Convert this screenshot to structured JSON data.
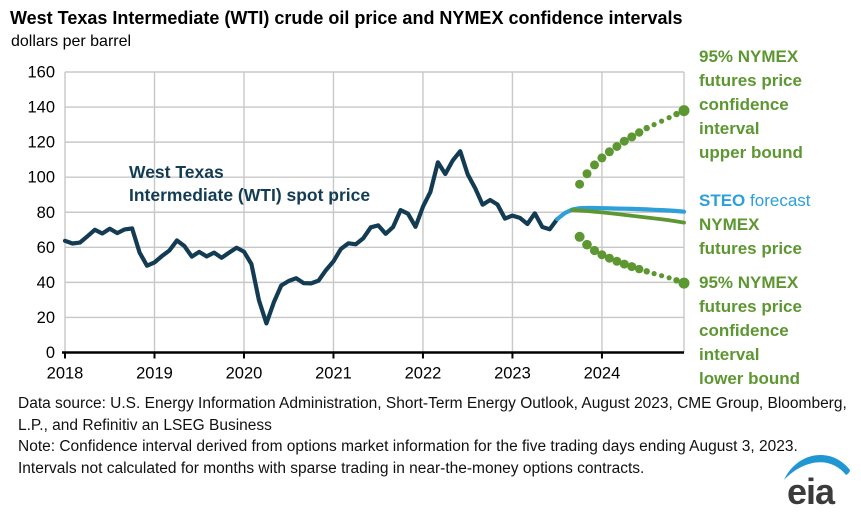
{
  "header": {
    "title": "West Texas Intermediate (WTI) crude oil price and NYMEX confidence intervals",
    "subtitle": "dollars per barrel"
  },
  "annotations": {
    "spot_label": {
      "lines": [
        "West Texas",
        "Intermediate (WTI) spot price"
      ]
    },
    "upper_bound": {
      "lines": [
        "95% NYMEX",
        "futures price",
        "confidence",
        "interval",
        "upper bound"
      ]
    },
    "steo": {
      "label": "STEO",
      "rest": " forecast"
    },
    "nymex_futures": {
      "lines": [
        "NYMEX",
        "futures price"
      ]
    },
    "lower_bound": {
      "lines": [
        "95% NYMEX",
        "futures price",
        "confidence",
        "interval",
        "lower bound"
      ]
    }
  },
  "footer": {
    "data_source": "Data source: U.S. Energy Information Administration, Short-Term Energy Outlook, August 2023, CME Group, Bloomberg, L.P., and Refinitiv an LSEG Business",
    "note": "Note: Confidence interval derived from options market information for the five trading days ending August 3, 2023. Intervals not calculated for months with sparse trading in near-the-money options contracts."
  },
  "logo": {
    "text": "eia"
  },
  "colors": {
    "spot": "#133c54",
    "steo": "#2d9fd9",
    "green": "#5d9732",
    "grid": "#c8c8c8",
    "axis": "#000000",
    "logo_swoosh": "#2096d3",
    "logo_text": "#3b3b3b"
  },
  "chart_data": {
    "type": "line",
    "title": "West Texas Intermediate (WTI) crude oil price and NYMEX confidence intervals",
    "ylabel": "dollars per barrel",
    "ylim": [
      0,
      160
    ],
    "ytick_interval": 20,
    "xlim": [
      2018,
      2024.917
    ],
    "xticks": [
      2018,
      2019,
      2020,
      2021,
      2022,
      2023,
      2024
    ],
    "grid": true,
    "legend_position": "right-annotations",
    "series": [
      {
        "name": "WTI spot price",
        "type": "line",
        "color": "#133c54",
        "width": 4.2,
        "start": "2018-01",
        "values": [
          63.7,
          62.2,
          62.7,
          66.3,
          70.0,
          67.9,
          70.6,
          68.1,
          70.2,
          70.8,
          57.0,
          49.5,
          51.4,
          55.0,
          58.2,
          63.9,
          60.8,
          54.7,
          57.4,
          54.8,
          57.0,
          54.0,
          57.0,
          59.8,
          57.5,
          50.5,
          29.9,
          16.6,
          28.6,
          38.3,
          40.8,
          42.4,
          39.6,
          39.4,
          41.0,
          47.0,
          52.0,
          59.1,
          62.3,
          61.7,
          65.2,
          71.4,
          72.5,
          67.7,
          71.6,
          81.2,
          79.2,
          71.7,
          83.2,
          91.6,
          108.5,
          101.8,
          109.6,
          114.8,
          101.6,
          93.7,
          84.3,
          87.0,
          84.4,
          76.4,
          78.1,
          76.8,
          73.3,
          79.4,
          71.6,
          70.3,
          76.1
        ]
      },
      {
        "name": "STEO forecast",
        "type": "line",
        "color": "#2d9fd9",
        "width": 4.2,
        "start": "2023-07",
        "values": [
          76.1,
          79.5,
          81.5,
          82.3,
          82.4,
          82.4,
          82.3,
          82.2,
          82.1,
          82.0,
          81.9,
          81.8,
          81.6,
          81.4,
          81.2,
          81.0,
          80.7,
          80.3
        ]
      },
      {
        "name": "NYMEX futures price",
        "type": "line",
        "color": "#5d9732",
        "width": 3.8,
        "start": "2023-09",
        "values": [
          81.3,
          81.0,
          80.7,
          80.3,
          79.9,
          79.5,
          79.0,
          78.5,
          78.0,
          77.5,
          77.0,
          76.5,
          76.0,
          75.4,
          74.8,
          74.1
        ]
      },
      {
        "name": "95% NYMEX futures price confidence interval upper bound",
        "type": "dots",
        "color": "#5d9732",
        "start": "2023-10",
        "values": [
          96,
          102,
          107,
          111,
          114.5,
          117.5,
          120.5,
          123,
          125.5,
          128,
          130,
          132,
          134,
          136,
          138
        ],
        "radii": [
          4.5,
          4.5,
          4.5,
          4.5,
          4.5,
          4.5,
          4.5,
          4.5,
          4.2,
          3.2,
          2.6,
          2.6,
          2.6,
          3.2,
          5.5
        ]
      },
      {
        "name": "95% NYMEX futures price confidence interval lower bound",
        "type": "dots",
        "color": "#5d9732",
        "start": "2023-10",
        "values": [
          66,
          61.5,
          58.2,
          55.8,
          53.8,
          52,
          50.4,
          49,
          47.6,
          46.3,
          45,
          43.8,
          42.6,
          41.2,
          39.6
        ],
        "radii": [
          5,
          4.8,
          4.6,
          4.5,
          4.5,
          4.5,
          4.5,
          4.5,
          4.2,
          3.2,
          2.6,
          2.6,
          2.6,
          3.2,
          5.5
        ]
      }
    ]
  }
}
